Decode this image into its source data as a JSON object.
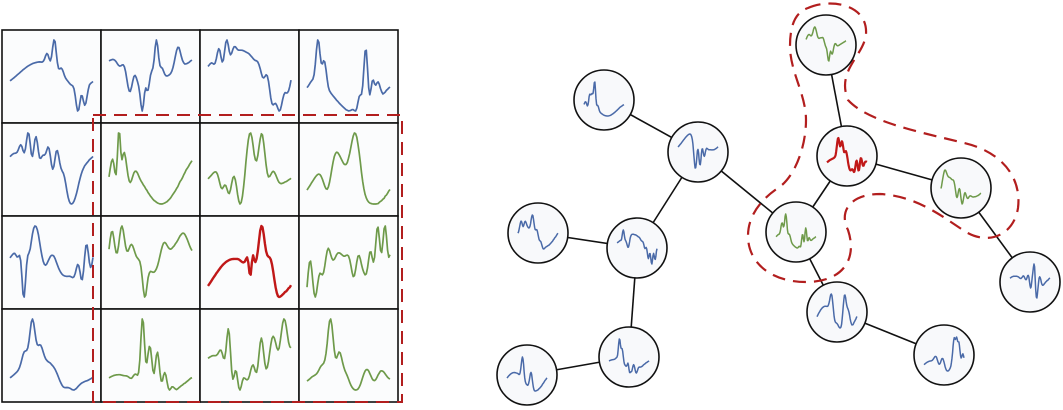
{
  "colors": {
    "blue": "#4a6aa8",
    "green": "#6e9a4a",
    "red": "#c01818",
    "dashed_highlight": "#b21e1e",
    "cell_border": "#111111",
    "node_border": "#111111",
    "node_fill": "#f8f9fb",
    "edge": "#111111"
  },
  "grid": {
    "rows": 4,
    "cols": 4,
    "cells": [
      [
        "blue",
        "blue",
        "blue",
        "blue"
      ],
      [
        "blue",
        "green",
        "green",
        "green"
      ],
      [
        "blue",
        "green",
        "red",
        "green"
      ],
      [
        "blue",
        "green",
        "green",
        "green"
      ]
    ],
    "highlight": {
      "row_start": 1,
      "col_start": 1,
      "row_end": 3,
      "col_end": 3
    }
  },
  "graph": {
    "nodes": [
      {
        "id": "n0",
        "color": "blue"
      },
      {
        "id": "n1",
        "color": "blue"
      },
      {
        "id": "n2",
        "color": "green"
      },
      {
        "id": "n3",
        "color": "red"
      },
      {
        "id": "n4",
        "color": "green"
      },
      {
        "id": "n5",
        "color": "green"
      },
      {
        "id": "n6",
        "color": "blue"
      },
      {
        "id": "n7",
        "color": "blue"
      },
      {
        "id": "n8",
        "color": "blue"
      },
      {
        "id": "n9",
        "color": "blue"
      },
      {
        "id": "n10",
        "color": "blue"
      },
      {
        "id": "n11",
        "color": "blue"
      },
      {
        "id": "n12",
        "color": "blue"
      }
    ],
    "edges": [
      [
        "n0",
        "n1"
      ],
      [
        "n1",
        "n5"
      ],
      [
        "n1",
        "n8"
      ],
      [
        "n8",
        "n7"
      ],
      [
        "n8",
        "n10"
      ],
      [
        "n10",
        "n9"
      ],
      [
        "n2",
        "n3"
      ],
      [
        "n3",
        "n5"
      ],
      [
        "n3",
        "n4"
      ],
      [
        "n4",
        "n6"
      ],
      [
        "n5",
        "n11"
      ],
      [
        "n11",
        "n12"
      ]
    ],
    "highlight_group": [
      "n2",
      "n3",
      "n4",
      "n5"
    ]
  }
}
